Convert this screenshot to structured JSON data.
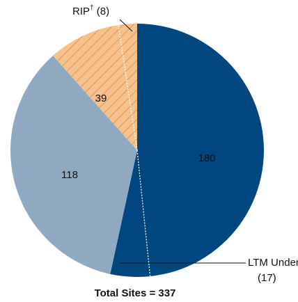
{
  "chart_data": {
    "type": "pie",
    "categories": [
      null,
      null,
      null
    ],
    "values": [
      180,
      118,
      39
    ],
    "colors": [
      "#00467f",
      "#8fa9c3",
      "#f3c28d"
    ],
    "hatch": [
      false,
      false,
      true
    ],
    "hatch_color": "#e8843a",
    "subsets": [
      {
        "name": "LTM Underway",
        "note_mark": "*",
        "value": 17,
        "value_label": "(17)",
        "parent": 0
      },
      {
        "name": "RIP",
        "note_mark": "†",
        "value": 8,
        "value_label": "(8)",
        "parent": 2
      }
    ],
    "total_label": "Total Sites = 337"
  }
}
